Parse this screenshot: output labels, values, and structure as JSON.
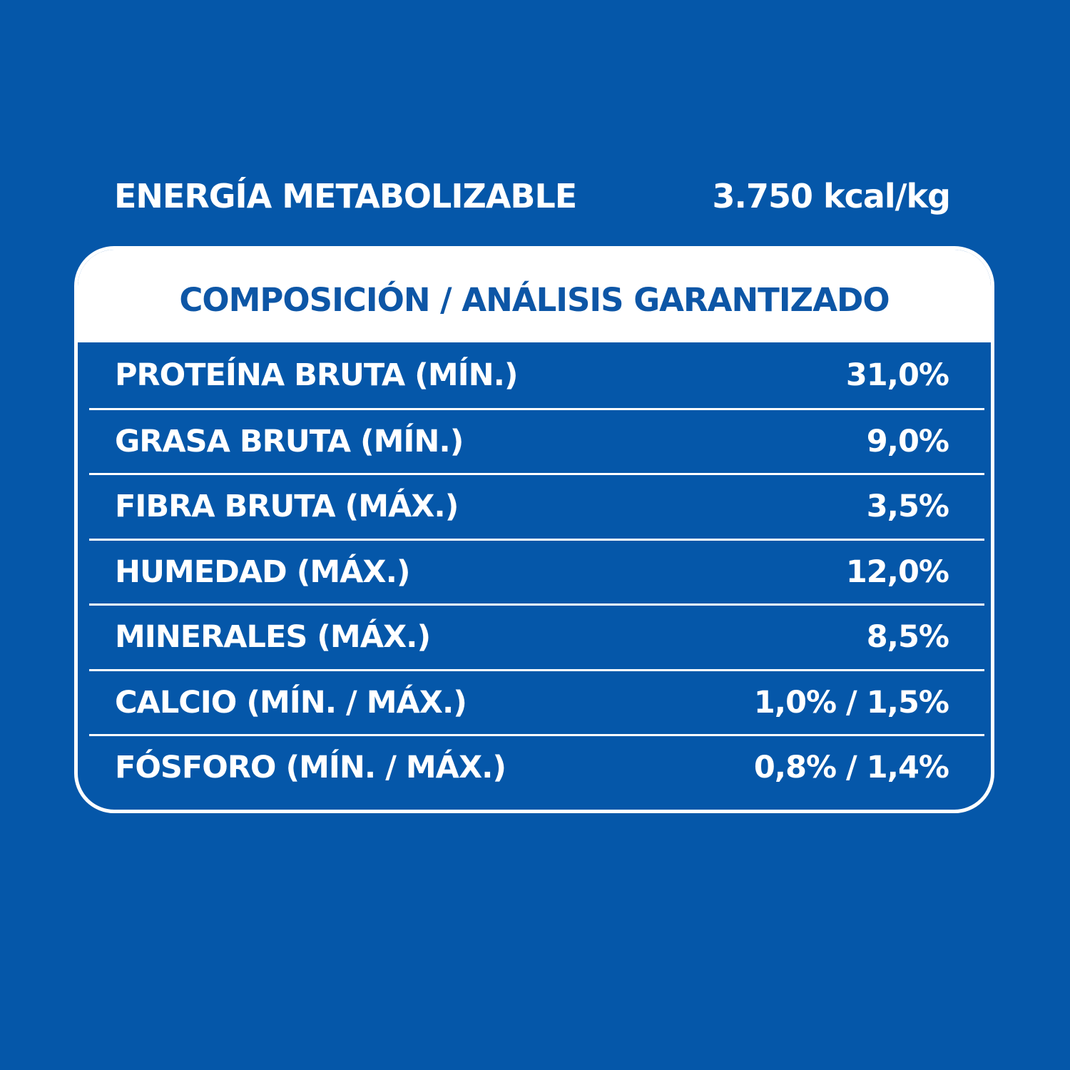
{
  "energy": {
    "label": "ENERGÍA METABOLIZABLE",
    "value": "3.750 kcal/kg"
  },
  "table": {
    "title": "COMPOSICIÓN / ANÁLISIS GARANTIZADO",
    "rows": [
      {
        "label": "PROTEÍNA BRUTA (MÍN.)",
        "value": "31,0%"
      },
      {
        "label": "GRASA BRUTA (MÍN.)",
        "value": "9,0%"
      },
      {
        "label": "FIBRA BRUTA (MÁX.)",
        "value": "3,5%"
      },
      {
        "label": "HUMEDAD (MÁX.)",
        "value": "12,0%"
      },
      {
        "label": "MINERALES (MÁX.)",
        "value": "8,5%"
      },
      {
        "label": "CALCIO (MÍN. / MÁX.)",
        "value": "1,0% / 1,5%"
      },
      {
        "label": "FÓSFORO (MÍN. / MÁX.)",
        "value": "0,8% / 1,4%"
      }
    ]
  },
  "colors": {
    "background": "#0557a9",
    "header_text": "#0d56a6",
    "foreground": "#ffffff"
  }
}
